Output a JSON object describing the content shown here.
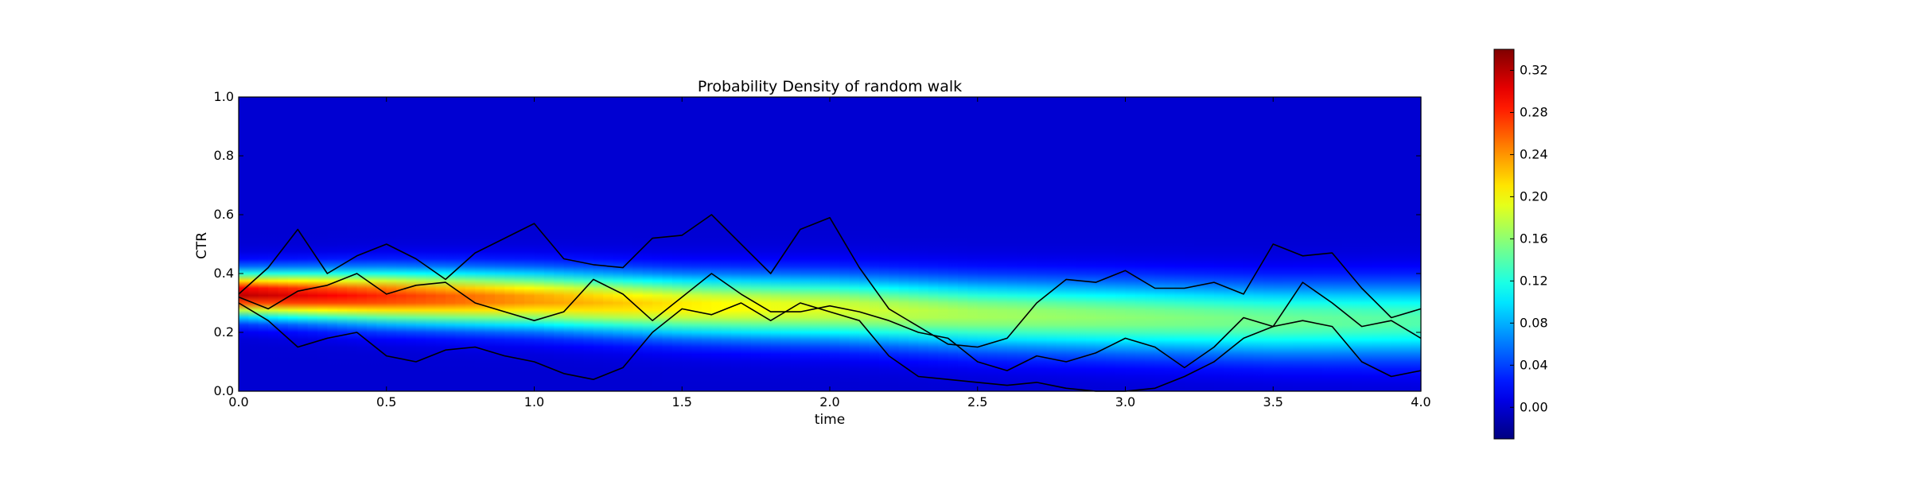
{
  "chart_data": {
    "type": "heatmap",
    "title": "Probability Density of random walk",
    "xlabel": "time",
    "ylabel": "CTR",
    "xlim": [
      0.0,
      4.0
    ],
    "ylim": [
      0.0,
      1.0
    ],
    "x_ticks": [
      "0.0",
      "0.5",
      "1.0",
      "1.5",
      "2.0",
      "2.5",
      "3.0",
      "3.5",
      "4.0"
    ],
    "y_ticks": [
      "0.0",
      "0.2",
      "0.4",
      "0.6",
      "0.8",
      "1.0"
    ],
    "colormap": "jet",
    "colorbar": {
      "range": [
        -0.03,
        0.34
      ],
      "ticks": [
        "0.00",
        "0.04",
        "0.08",
        "0.12",
        "0.16",
        "0.20",
        "0.24",
        "0.28",
        "0.32"
      ]
    },
    "density_profile": {
      "time": [
        0.0,
        0.5,
        1.0,
        1.5,
        2.0,
        2.5,
        3.0,
        3.5,
        4.0
      ],
      "mean": [
        0.33,
        0.32,
        0.31,
        0.29,
        0.28,
        0.26,
        0.25,
        0.24,
        0.24
      ],
      "std": [
        0.05,
        0.06,
        0.065,
        0.07,
        0.075,
        0.08,
        0.083,
        0.085,
        0.088
      ],
      "peak_density": [
        0.32,
        0.28,
        0.24,
        0.21,
        0.19,
        0.17,
        0.16,
        0.15,
        0.14
      ]
    },
    "series": [
      {
        "x": [
          0.0,
          0.1,
          0.2,
          0.3,
          0.4,
          0.5,
          0.6,
          0.7,
          0.8,
          0.9,
          1.0,
          1.1,
          1.2,
          1.3,
          1.4,
          1.5,
          1.6,
          1.7,
          1.8,
          1.9,
          2.0,
          2.1,
          2.2,
          2.3,
          2.4,
          2.5,
          2.6,
          2.7,
          2.8,
          2.9,
          3.0,
          3.1,
          3.2,
          3.3,
          3.4,
          3.5,
          3.6,
          3.7,
          3.8,
          3.9,
          4.0
        ],
        "y": [
          0.33,
          0.42,
          0.55,
          0.4,
          0.46,
          0.5,
          0.45,
          0.38,
          0.47,
          0.52,
          0.57,
          0.45,
          0.43,
          0.42,
          0.52,
          0.53,
          0.6,
          0.5,
          0.4,
          0.55,
          0.59,
          0.42,
          0.28,
          0.22,
          0.16,
          0.15,
          0.18,
          0.3,
          0.38,
          0.37,
          0.41,
          0.35,
          0.35,
          0.37,
          0.33,
          0.5,
          0.46,
          0.47,
          0.35,
          0.25,
          0.28
        ]
      },
      {
        "x": [
          0.0,
          0.1,
          0.2,
          0.3,
          0.4,
          0.5,
          0.6,
          0.7,
          0.8,
          0.9,
          1.0,
          1.1,
          1.2,
          1.3,
          1.4,
          1.5,
          1.6,
          1.7,
          1.8,
          1.9,
          2.0,
          2.1,
          2.2,
          2.3,
          2.4,
          2.5,
          2.6,
          2.7,
          2.8,
          2.9,
          3.0,
          3.1,
          3.2,
          3.3,
          3.4,
          3.5,
          3.6,
          3.7,
          3.8,
          3.9,
          4.0
        ],
        "y": [
          0.32,
          0.28,
          0.34,
          0.36,
          0.4,
          0.33,
          0.36,
          0.37,
          0.3,
          0.27,
          0.24,
          0.27,
          0.38,
          0.33,
          0.24,
          0.32,
          0.4,
          0.33,
          0.27,
          0.27,
          0.29,
          0.27,
          0.24,
          0.2,
          0.18,
          0.1,
          0.07,
          0.12,
          0.1,
          0.13,
          0.18,
          0.15,
          0.08,
          0.15,
          0.25,
          0.22,
          0.37,
          0.3,
          0.22,
          0.24,
          0.18
        ]
      },
      {
        "x": [
          0.0,
          0.1,
          0.2,
          0.3,
          0.4,
          0.5,
          0.6,
          0.7,
          0.8,
          0.9,
          1.0,
          1.1,
          1.2,
          1.3,
          1.4,
          1.5,
          1.6,
          1.7,
          1.8,
          1.9,
          2.0,
          2.1,
          2.2,
          2.3,
          2.4,
          2.5,
          2.6,
          2.7,
          2.8,
          2.9,
          3.0,
          3.1,
          3.2,
          3.3,
          3.4,
          3.5,
          3.6,
          3.7,
          3.8,
          3.9,
          4.0
        ],
        "y": [
          0.3,
          0.24,
          0.15,
          0.18,
          0.2,
          0.12,
          0.1,
          0.14,
          0.15,
          0.12,
          0.1,
          0.06,
          0.04,
          0.08,
          0.2,
          0.28,
          0.26,
          0.3,
          0.24,
          0.3,
          0.27,
          0.24,
          0.12,
          0.05,
          0.04,
          0.03,
          0.02,
          0.03,
          0.01,
          0.0,
          0.0,
          0.01,
          0.05,
          0.1,
          0.18,
          0.22,
          0.24,
          0.22,
          0.1,
          0.05,
          0.07
        ]
      }
    ]
  }
}
